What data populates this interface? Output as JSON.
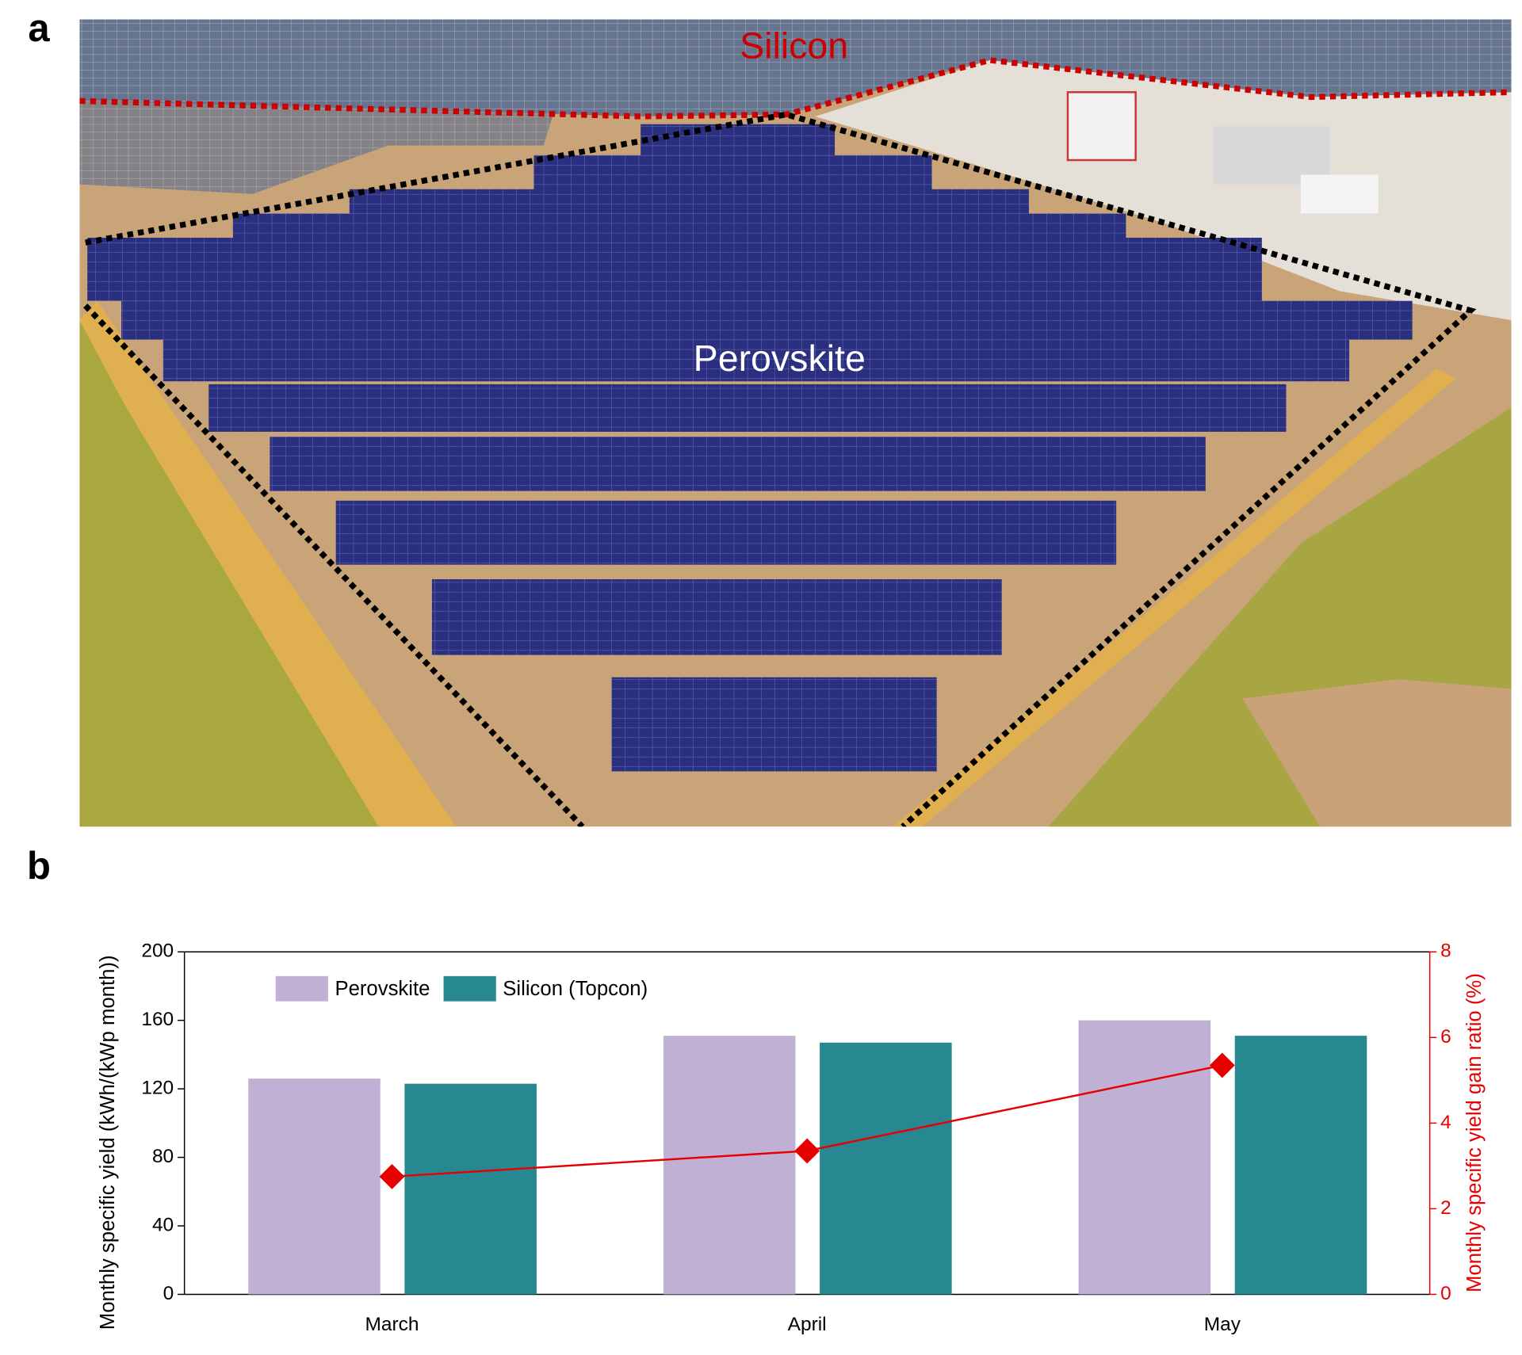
{
  "panel_labels": [
    "a",
    "b"
  ],
  "photo": {
    "labels": [
      "Silicon",
      "Perovskite"
    ]
  },
  "chart_data": {
    "type": "bar",
    "categories": [
      "March",
      "April",
      "May"
    ],
    "series": [
      {
        "name": "Perovskite",
        "color": "#c0b0d4",
        "values": [
          126,
          151,
          160
        ]
      },
      {
        "name": "Silicon (Topcon)",
        "color": "#288891",
        "values": [
          123,
          147,
          151
        ]
      },
      {
        "type": "line",
        "axis": "y2",
        "color": "#e60000",
        "values": [
          2.75,
          3.35,
          5.35
        ]
      }
    ],
    "ylabel": "Monthly specific yield (kWh/(kWp month))",
    "y2label": "Monthly specific yield gain ratio (%)",
    "ylim": [
      0,
      200
    ],
    "yticks": [
      0,
      40,
      80,
      120,
      160,
      200
    ],
    "y2lim": [
      0,
      8
    ],
    "y2ticks": [
      0,
      2,
      4,
      6,
      8
    ],
    "legend": "top-left"
  }
}
